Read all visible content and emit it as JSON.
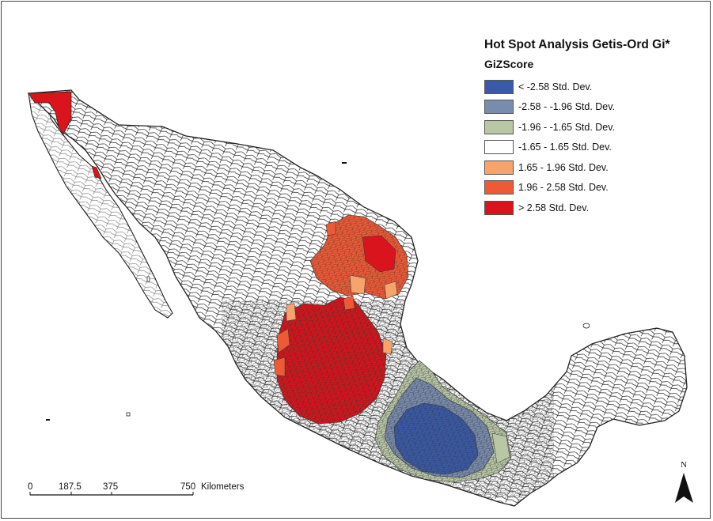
{
  "legend": {
    "title": "Hot Spot Analysis Getis-Ord Gi*",
    "field": "GiZScore",
    "classes": [
      {
        "label": "< -2.58 Std. Dev.",
        "color": "#3a5aa8"
      },
      {
        "label": "-2.58 - -1.96 Std. Dev.",
        "color": "#7a8cae"
      },
      {
        "label": "-1.96 - -1.65 Std. Dev.",
        "color": "#b9c7a7"
      },
      {
        "label": "-1.65 - 1.65 Std. Dev.",
        "color": "#ffffff"
      },
      {
        "label": "1.65 - 1.96 Std. Dev.",
        "color": "#f6a46c"
      },
      {
        "label": "1.96 - 2.58 Std. Dev.",
        "color": "#ee5a36"
      },
      {
        "label": "> 2.58 Std. Dev.",
        "color": "#d9141c"
      }
    ]
  },
  "scalebar": {
    "ticks": [
      "0",
      "187.5",
      "375",
      "750"
    ],
    "unit": "Kilometers"
  },
  "north_arrow": {
    "label": "N"
  }
}
